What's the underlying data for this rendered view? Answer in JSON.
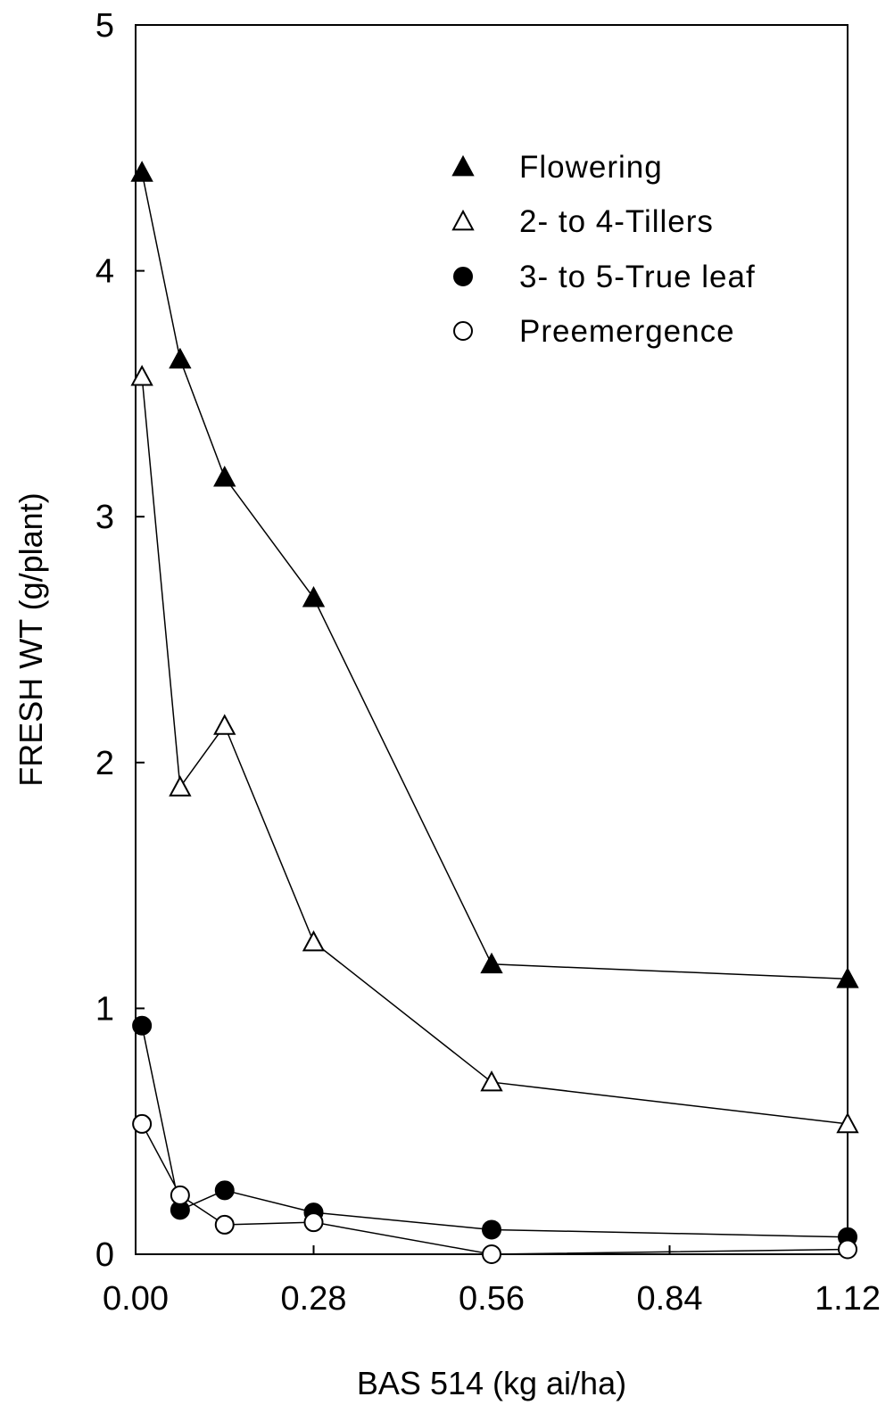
{
  "chart_data": {
    "type": "line",
    "xlabel": "BAS 514 (kg ai/ha)",
    "ylabel": "FRESH WT (g/plant)",
    "xlim": [
      0,
      1.12
    ],
    "ylim": [
      0,
      5
    ],
    "xticks": [
      "0.00",
      "0.28",
      "0.56",
      "0.84",
      "1.12"
    ],
    "yticks": [
      "0",
      "1",
      "2",
      "3",
      "4",
      "5"
    ],
    "legend_position": "top-right",
    "grid": false,
    "series": [
      {
        "name": "Flowering",
        "marker": "filled-triangle",
        "points": [
          [
            0.01,
            4.4
          ],
          [
            0.07,
            3.64
          ],
          [
            0.14,
            3.16
          ],
          [
            0.28,
            2.67
          ],
          [
            0.56,
            1.18
          ],
          [
            1.12,
            1.12
          ]
        ]
      },
      {
        "name": "2- to 4-Tillers",
        "marker": "open-triangle",
        "points": [
          [
            0.01,
            3.57
          ],
          [
            0.07,
            1.9
          ],
          [
            0.14,
            2.15
          ],
          [
            0.28,
            1.27
          ],
          [
            0.56,
            0.7
          ],
          [
            1.12,
            0.53
          ]
        ]
      },
      {
        "name": "3- to 5-True leaf",
        "marker": "filled-circle",
        "points": [
          [
            0.01,
            0.93
          ],
          [
            0.07,
            0.18
          ],
          [
            0.14,
            0.26
          ],
          [
            0.28,
            0.17
          ],
          [
            0.56,
            0.1
          ],
          [
            1.12,
            0.07
          ]
        ]
      },
      {
        "name": "Preemergence",
        "marker": "open-circle",
        "points": [
          [
            0.01,
            0.53
          ],
          [
            0.07,
            0.24
          ],
          [
            0.14,
            0.12
          ],
          [
            0.28,
            0.13
          ],
          [
            0.56,
            0.0
          ],
          [
            1.12,
            0.02
          ]
        ]
      }
    ]
  }
}
